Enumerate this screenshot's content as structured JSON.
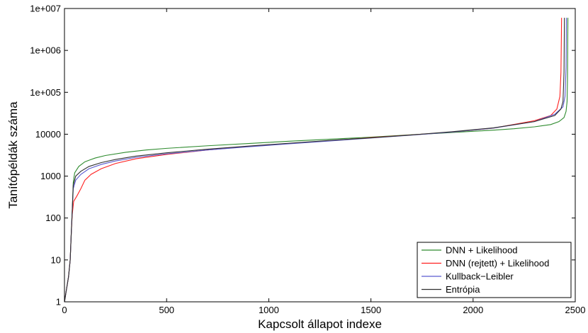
{
  "chart_data": {
    "type": "line",
    "title": "",
    "xlabel": "Kapcsolt állapot indexe",
    "ylabel": "Tanítópéldák száma",
    "xlim": [
      0,
      2500
    ],
    "ylim": [
      1,
      10000000
    ],
    "yscale": "log",
    "grid": false,
    "legend_position": "bottom-right",
    "x_ticks": [
      0,
      500,
      1000,
      1500,
      2000,
      2500
    ],
    "x_tick_labels": [
      "0",
      "500",
      "1000",
      "1500",
      "2000",
      "2500"
    ],
    "y_ticks": [
      1,
      10,
      100,
      1000,
      10000,
      100000,
      1000000,
      10000000
    ],
    "y_tick_labels": [
      "1",
      "10",
      "100",
      "1000",
      "10000",
      "1e+005",
      "1e+006",
      "1e+007"
    ],
    "series": [
      {
        "name": "DNN + Likelihood",
        "color": "#2e8b2e",
        "points": [
          [
            0,
            1
          ],
          [
            10,
            2
          ],
          [
            20,
            4
          ],
          [
            28,
            10
          ],
          [
            33,
            40
          ],
          [
            38,
            150
          ],
          [
            43,
            700
          ],
          [
            50,
            1200
          ],
          [
            70,
            1700
          ],
          [
            100,
            2200
          ],
          [
            150,
            2700
          ],
          [
            200,
            3100
          ],
          [
            300,
            3700
          ],
          [
            400,
            4200
          ],
          [
            500,
            4600
          ],
          [
            700,
            5300
          ],
          [
            900,
            6000
          ],
          [
            1100,
            6800
          ],
          [
            1300,
            7600
          ],
          [
            1500,
            8500
          ],
          [
            1700,
            9700
          ],
          [
            1900,
            11000
          ],
          [
            2100,
            12500
          ],
          [
            2200,
            13500
          ],
          [
            2300,
            15000
          ],
          [
            2380,
            17000
          ],
          [
            2420,
            20000
          ],
          [
            2445,
            25000
          ],
          [
            2455,
            35000
          ],
          [
            2460,
            60000
          ],
          [
            2462,
            200000
          ],
          [
            2463,
            1000000
          ],
          [
            2464,
            6000000
          ]
        ]
      },
      {
        "name": "DNN (rejtett) + Likelihood",
        "color": "#ff2020",
        "points": [
          [
            0,
            1
          ],
          [
            10,
            2
          ],
          [
            20,
            4
          ],
          [
            28,
            10
          ],
          [
            33,
            40
          ],
          [
            38,
            120
          ],
          [
            45,
            250
          ],
          [
            60,
            330
          ],
          [
            80,
            500
          ],
          [
            100,
            800
          ],
          [
            130,
            1100
          ],
          [
            180,
            1500
          ],
          [
            250,
            2000
          ],
          [
            350,
            2600
          ],
          [
            500,
            3300
          ],
          [
            700,
            4200
          ],
          [
            900,
            5100
          ],
          [
            1100,
            6000
          ],
          [
            1300,
            7000
          ],
          [
            1500,
            8300
          ],
          [
            1700,
            9600
          ],
          [
            1900,
            11300
          ],
          [
            2100,
            14000
          ],
          [
            2300,
            21000
          ],
          [
            2380,
            28000
          ],
          [
            2410,
            40000
          ],
          [
            2425,
            80000
          ],
          [
            2430,
            300000
          ],
          [
            2432,
            2000000
          ],
          [
            2433,
            6000000
          ]
        ]
      },
      {
        "name": "Kullback−Leibler",
        "color": "#5a5ad0",
        "points": [
          [
            0,
            1
          ],
          [
            10,
            2
          ],
          [
            20,
            4
          ],
          [
            28,
            10
          ],
          [
            33,
            40
          ],
          [
            38,
            150
          ],
          [
            43,
            500
          ],
          [
            55,
            800
          ],
          [
            80,
            1100
          ],
          [
            120,
            1500
          ],
          [
            180,
            1900
          ],
          [
            250,
            2300
          ],
          [
            350,
            2800
          ],
          [
            500,
            3400
          ],
          [
            700,
            4200
          ],
          [
            900,
            5000
          ],
          [
            1100,
            5900
          ],
          [
            1300,
            6900
          ],
          [
            1500,
            8100
          ],
          [
            1700,
            9500
          ],
          [
            1900,
            11300
          ],
          [
            2100,
            14000
          ],
          [
            2300,
            20000
          ],
          [
            2400,
            30000
          ],
          [
            2440,
            45000
          ],
          [
            2450,
            80000
          ],
          [
            2455,
            400000
          ],
          [
            2457,
            6000000
          ]
        ]
      },
      {
        "name": "Entrópia",
        "color": "#303030",
        "points": [
          [
            0,
            1
          ],
          [
            10,
            2
          ],
          [
            20,
            4
          ],
          [
            28,
            10
          ],
          [
            33,
            40
          ],
          [
            38,
            150
          ],
          [
            43,
            600
          ],
          [
            55,
            1000
          ],
          [
            80,
            1300
          ],
          [
            120,
            1700
          ],
          [
            180,
            2100
          ],
          [
            250,
            2500
          ],
          [
            350,
            3000
          ],
          [
            500,
            3600
          ],
          [
            700,
            4400
          ],
          [
            900,
            5200
          ],
          [
            1100,
            6100
          ],
          [
            1300,
            7100
          ],
          [
            1500,
            8200
          ],
          [
            1700,
            9600
          ],
          [
            1900,
            11500
          ],
          [
            2100,
            14200
          ],
          [
            2300,
            20000
          ],
          [
            2400,
            28000
          ],
          [
            2430,
            40000
          ],
          [
            2440,
            60000
          ],
          [
            2445,
            300000
          ],
          [
            2447,
            6000000
          ]
        ]
      }
    ]
  }
}
